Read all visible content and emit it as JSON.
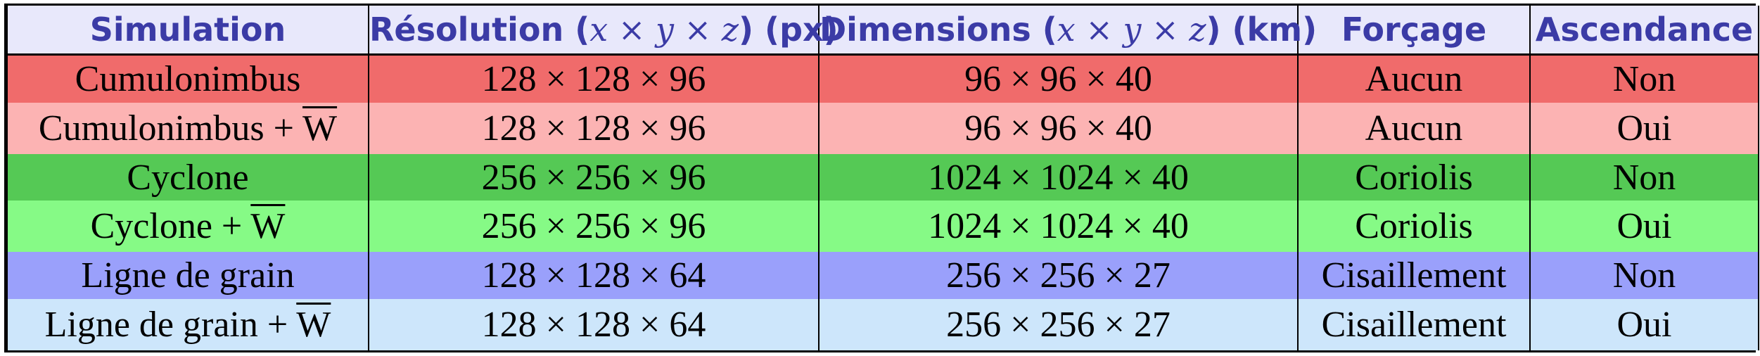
{
  "table": {
    "headers": [
      {
        "pre": "Simulation",
        "math": "",
        "post": ""
      },
      {
        "pre": "Résolution (",
        "math": "x × y × z",
        "post": ") (px)"
      },
      {
        "pre": "Dimensions (",
        "math": "x × y × z",
        "post": ") (km)"
      },
      {
        "pre": "Forçage",
        "math": "",
        "post": ""
      },
      {
        "pre": "Ascendance",
        "math": "",
        "post": ""
      }
    ],
    "rows": [
      {
        "simulation": "Cumulonimbus",
        "wbar": "",
        "resolution": "128 × 128 × 96",
        "dimensions": "96 × 96 × 40",
        "forcage": "Aucun",
        "ascendance": "Non",
        "color": "#f06b6b"
      },
      {
        "simulation": "Cumulonimbus + ",
        "wbar": "W",
        "resolution": "128 × 128 × 96",
        "dimensions": "96 × 96 × 40",
        "forcage": "Aucun",
        "ascendance": "Oui",
        "color": "#fcb3b3"
      },
      {
        "simulation": "Cyclone",
        "wbar": "",
        "resolution": "256 × 256 × 96",
        "dimensions": "1024 × 1024 × 40",
        "forcage": "Coriolis",
        "ascendance": "Non",
        "color": "#55c955"
      },
      {
        "simulation": "Cyclone + ",
        "wbar": "W",
        "resolution": "256 × 256 × 96",
        "dimensions": "1024 × 1024 × 40",
        "forcage": "Coriolis",
        "ascendance": "Oui",
        "color": "#86fa86"
      },
      {
        "simulation": "Ligne de grain",
        "wbar": "",
        "resolution": "128 × 128 × 64",
        "dimensions": "256 × 256 × 27",
        "forcage": "Cisaillement",
        "ascendance": "Non",
        "color": "#9aa0fb"
      },
      {
        "simulation": "Ligne de grain + ",
        "wbar": "W",
        "resolution": "128 × 128 × 64",
        "dimensions": "256 × 256 × 27",
        "forcage": "Cisaillement",
        "ascendance": "Oui",
        "color": "#cde6fb"
      }
    ]
  },
  "colors": {
    "header_bg": "#e8e8fb",
    "header_text": "#3b3ba6",
    "border": "#000000"
  }
}
